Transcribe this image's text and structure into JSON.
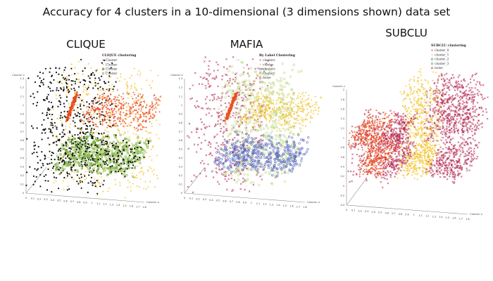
{
  "figure": {
    "title": "Accuracy for 4 clusters in a 10-dimensional (3 dimensions shown) data set"
  },
  "colors": {
    "orange": "#ea4b1e",
    "yellow": "#f4c430",
    "black": "#111111",
    "green": "#7db542",
    "crimson": "#b2224f",
    "blue": "#4a5ab8",
    "light_green": "#b9d67a",
    "axis": "#888888"
  },
  "chart_data": [
    {
      "type": "scatter",
      "title": "CLIQUE",
      "legend_title": "CLIQUE clustering",
      "legend_position": "top-right",
      "legend": [
        {
          "label": "Cluster",
          "color": "#ea4b1e",
          "marker": "plus"
        },
        {
          "label": "Cluster",
          "color": "#f4c430",
          "marker": "plus"
        },
        {
          "label": "Cluster",
          "color": "#111111",
          "marker": "circle"
        },
        {
          "label": "Cluster",
          "color": "#7db542",
          "marker": "square"
        }
      ],
      "xlabel": "Column x",
      "ylabel": "Column z",
      "x_ticks": [
        "0",
        "0.1",
        "0.2",
        "0.3",
        "0.4",
        "0.5",
        "0.6",
        "0.7",
        "0.8",
        "0.9",
        "1",
        "1.1",
        "1.2",
        "1.3",
        "1.4",
        "1.5",
        "1.6",
        "1.7",
        "1.8"
      ],
      "z_ticks": [
        "0",
        "0.1",
        "0.2",
        "0.3",
        "0.4",
        "0.5",
        "0.6",
        "0.7",
        "0.8",
        "0.9",
        "1",
        "1.1",
        "1.2",
        "1.3"
      ],
      "series": [
        {
          "color": "#111111",
          "marker": "dot",
          "count": 520,
          "region": {
            "x": [
              0.0,
              1.1
            ],
            "y": [
              0.0,
              1.0
            ],
            "z": [
              0.0,
              1.3
            ]
          }
        },
        {
          "color": "#f4c430",
          "marker": "plus",
          "count": 520,
          "region": {
            "x": [
              0.3,
              1.8
            ],
            "y": [
              0.0,
              1.0
            ],
            "z": [
              0.0,
              1.25
            ]
          }
        },
        {
          "color": "#7db542",
          "marker": "square",
          "count": 480,
          "region": {
            "x": [
              0.4,
              1.6
            ],
            "y": [
              0.0,
              1.0
            ],
            "z": [
              0.25,
              0.45
            ]
          }
        },
        {
          "color": "#111111",
          "marker": "dot",
          "count": 180,
          "region": {
            "x": [
              0.4,
              1.6
            ],
            "y": [
              0.0,
              1.0
            ],
            "z": [
              0.25,
              0.45
            ]
          }
        },
        {
          "color": "#ea4b1e",
          "marker": "plus",
          "count": 380,
          "region": {
            "x": [
              0.8,
              1.8
            ],
            "y": [
              0.0,
              1.0
            ],
            "z": [
              0.78,
              0.95
            ]
          }
        },
        {
          "color": "#ea4b1e",
          "marker": "plus",
          "count": 200,
          "region": {
            "x": [
              0.6,
              0.75
            ],
            "y": [
              0.0,
              0.15
            ],
            "z": [
              0.85,
              1.15
            ]
          },
          "shape": "streak"
        }
      ]
    },
    {
      "type": "scatter",
      "title": "MAFIA",
      "legend_title": "By Label Clustering",
      "legend_position": "top-right",
      "legend": [
        {
          "label": "clusters",
          "color": "#ea4b1e",
          "marker": "plus"
        },
        {
          "label": "cluster",
          "color": "#f4c430",
          "marker": "plus"
        },
        {
          "label": "clusters",
          "color": "#4a5ab8",
          "marker": "circle"
        },
        {
          "label": "clusterr",
          "color": "#b9d67a",
          "marker": "circle"
        },
        {
          "label": "noise",
          "color": "#b2224f",
          "marker": "circle"
        }
      ],
      "xlabel": "Column x",
      "ylabel": "Column z",
      "x_ticks": [
        "0",
        "0.1",
        "0.2",
        "0.3",
        "0.4",
        "0.5",
        "0.6",
        "0.7",
        "0.8",
        "0.9",
        "1",
        "1.1",
        "1.2",
        "1.3",
        "1.4",
        "1.5",
        "1.6",
        "1.7",
        "1.8"
      ],
      "z_ticks": [
        "0",
        "0.1",
        "0.2",
        "0.3",
        "0.4",
        "0.5",
        "0.6",
        "0.7",
        "0.8",
        "0.9",
        "1",
        "1.1",
        "1.2",
        "1.3"
      ],
      "series": [
        {
          "color": "#b2224f",
          "marker": "cross",
          "count": 420,
          "region": {
            "x": [
              0.0,
              1.0
            ],
            "y": [
              0.0,
              1.0
            ],
            "z": [
              0.0,
              1.3
            ]
          }
        },
        {
          "color": "#b9d67a",
          "marker": "circle",
          "count": 520,
          "region": {
            "x": [
              0.5,
              1.5
            ],
            "y": [
              0.0,
              1.0
            ],
            "z": [
              0.1,
              1.3
            ]
          }
        },
        {
          "color": "#4a5ab8",
          "marker": "circle",
          "count": 420,
          "region": {
            "x": [
              0.4,
              1.6
            ],
            "y": [
              0.0,
              1.0
            ],
            "z": [
              0.25,
              0.45
            ]
          }
        },
        {
          "color": "#f4c430",
          "marker": "plus",
          "count": 380,
          "region": {
            "x": [
              0.8,
              1.8
            ],
            "y": [
              0.0,
              1.0
            ],
            "z": [
              0.78,
              0.95
            ]
          }
        },
        {
          "color": "#ea4b1e",
          "marker": "plus",
          "count": 200,
          "region": {
            "x": [
              0.6,
              0.75
            ],
            "y": [
              0.0,
              0.15
            ],
            "z": [
              0.85,
              1.15
            ]
          },
          "shape": "streak"
        }
      ]
    },
    {
      "type": "scatter",
      "title": "SUBCLU",
      "legend_title": "SUBCLU clustering",
      "legend_position": "top-right",
      "legend": [
        {
          "label": "cluster_0",
          "color": "#ea4b1e",
          "marker": "plus"
        },
        {
          "label": "cluster_1",
          "color": "#f4c430",
          "marker": "plus"
        },
        {
          "label": "cluster_2",
          "color": "#4a5ab8",
          "marker": "circle"
        },
        {
          "label": "cluster_3",
          "color": "#7db542",
          "marker": "square"
        },
        {
          "label": "noise",
          "color": "#b2224f",
          "marker": "circle"
        }
      ],
      "xlabel": "Column x",
      "ylabel": "Column z",
      "x_ticks": [
        "0",
        "0.1",
        "0.2",
        "0.3",
        "0.4",
        "0.5",
        "0.6",
        "0.7",
        "0.8",
        "0.9",
        "1",
        "1.1",
        "1.2",
        "1.3",
        "1.4",
        "1.5",
        "1.6",
        "1.7",
        "1.8"
      ],
      "z_ticks": [
        "-0.4",
        "-0.2",
        "0",
        "0.2",
        "0.4",
        "0.6",
        "0.8",
        "1",
        "1.2",
        "1.4",
        "1.6",
        "1.8",
        "2"
      ],
      "series": [
        {
          "color": "#b2224f",
          "marker": "cross",
          "count": 260,
          "region": {
            "x": [
              0.0,
              0.6
            ],
            "y": [
              0.0,
              1.0
            ],
            "z": [
              0.0,
              1.1
            ]
          }
        },
        {
          "color": "#b2224f",
          "marker": "cross",
          "count": 650,
          "region": {
            "x": [
              1.1,
              1.8
            ],
            "y": [
              0.0,
              1.0
            ],
            "z": [
              0.9,
              2.0
            ]
          }
        },
        {
          "color": "#f4c430",
          "marker": "plus",
          "count": 420,
          "region": {
            "x": [
              0.75,
              1.15
            ],
            "y": [
              0.0,
              1.0
            ],
            "z": [
              0.6,
              2.0
            ]
          }
        },
        {
          "color": "#ea4b1e",
          "marker": "plus",
          "count": 280,
          "region": {
            "x": [
              0.0,
              0.45
            ],
            "y": [
              0.0,
              1.0
            ],
            "z": [
              0.75,
              1.05
            ]
          }
        },
        {
          "color": "#b2224f",
          "marker": "cross",
          "count": 200,
          "region": {
            "x": [
              0.45,
              0.75
            ],
            "y": [
              0.0,
              1.0
            ],
            "z": [
              0.75,
              1.05
            ]
          }
        },
        {
          "color": "#ea4b1e",
          "marker": "plus",
          "count": 300,
          "region": {
            "x": [
              0.15,
              0.5
            ],
            "y": [
              0.0,
              1.0
            ],
            "z": [
              0.2,
              0.55
            ]
          }
        },
        {
          "color": "#b2224f",
          "marker": "cross",
          "count": 180,
          "region": {
            "x": [
              0.5,
              0.75
            ],
            "y": [
              0.0,
              1.0
            ],
            "z": [
              0.2,
              0.55
            ]
          }
        },
        {
          "color": "#f4c430",
          "marker": "plus",
          "count": 300,
          "region": {
            "x": [
              0.75,
              1.15
            ],
            "y": [
              0.0,
              1.0
            ],
            "z": [
              0.2,
              0.55
            ]
          }
        },
        {
          "color": "#b2224f",
          "marker": "cross",
          "count": 300,
          "region": {
            "x": [
              1.15,
              1.7
            ],
            "y": [
              0.0,
              1.0
            ],
            "z": [
              0.2,
              0.55
            ]
          }
        }
      ]
    }
  ]
}
